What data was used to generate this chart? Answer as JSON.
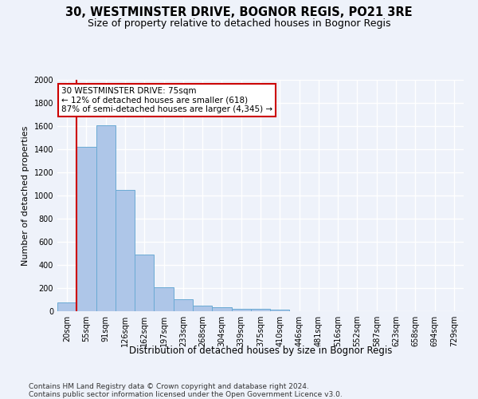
{
  "title": "30, WESTMINSTER DRIVE, BOGNOR REGIS, PO21 3RE",
  "subtitle": "Size of property relative to detached houses in Bognor Regis",
  "xlabel": "Distribution of detached houses by size in Bognor Regis",
  "ylabel": "Number of detached properties",
  "categories": [
    "20sqm",
    "55sqm",
    "91sqm",
    "126sqm",
    "162sqm",
    "197sqm",
    "233sqm",
    "268sqm",
    "304sqm",
    "339sqm",
    "375sqm",
    "410sqm",
    "446sqm",
    "481sqm",
    "516sqm",
    "552sqm",
    "587sqm",
    "623sqm",
    "658sqm",
    "694sqm",
    "729sqm"
  ],
  "values": [
    75,
    1420,
    1610,
    1045,
    490,
    205,
    105,
    45,
    35,
    22,
    18,
    14,
    0,
    0,
    0,
    0,
    0,
    0,
    0,
    0,
    0
  ],
  "bar_color": "#aec6e8",
  "bar_edge_color": "#6aaad4",
  "bar_width": 1.0,
  "vline_x": 0.5,
  "vline_color": "#cc0000",
  "annotation_text": "30 WESTMINSTER DRIVE: 75sqm\n← 12% of detached houses are smaller (618)\n87% of semi-detached houses are larger (4,345) →",
  "annotation_box_color": "#ffffff",
  "annotation_box_edge": "#cc0000",
  "ylim": [
    0,
    2000
  ],
  "yticks": [
    0,
    200,
    400,
    600,
    800,
    1000,
    1200,
    1400,
    1600,
    1800,
    2000
  ],
  "background_color": "#eef2fa",
  "grid_color": "#ffffff",
  "footer": "Contains HM Land Registry data © Crown copyright and database right 2024.\nContains public sector information licensed under the Open Government Licence v3.0.",
  "title_fontsize": 10.5,
  "subtitle_fontsize": 9,
  "xlabel_fontsize": 8.5,
  "ylabel_fontsize": 8,
  "tick_fontsize": 7,
  "footer_fontsize": 6.5,
  "annot_fontsize": 7.5
}
